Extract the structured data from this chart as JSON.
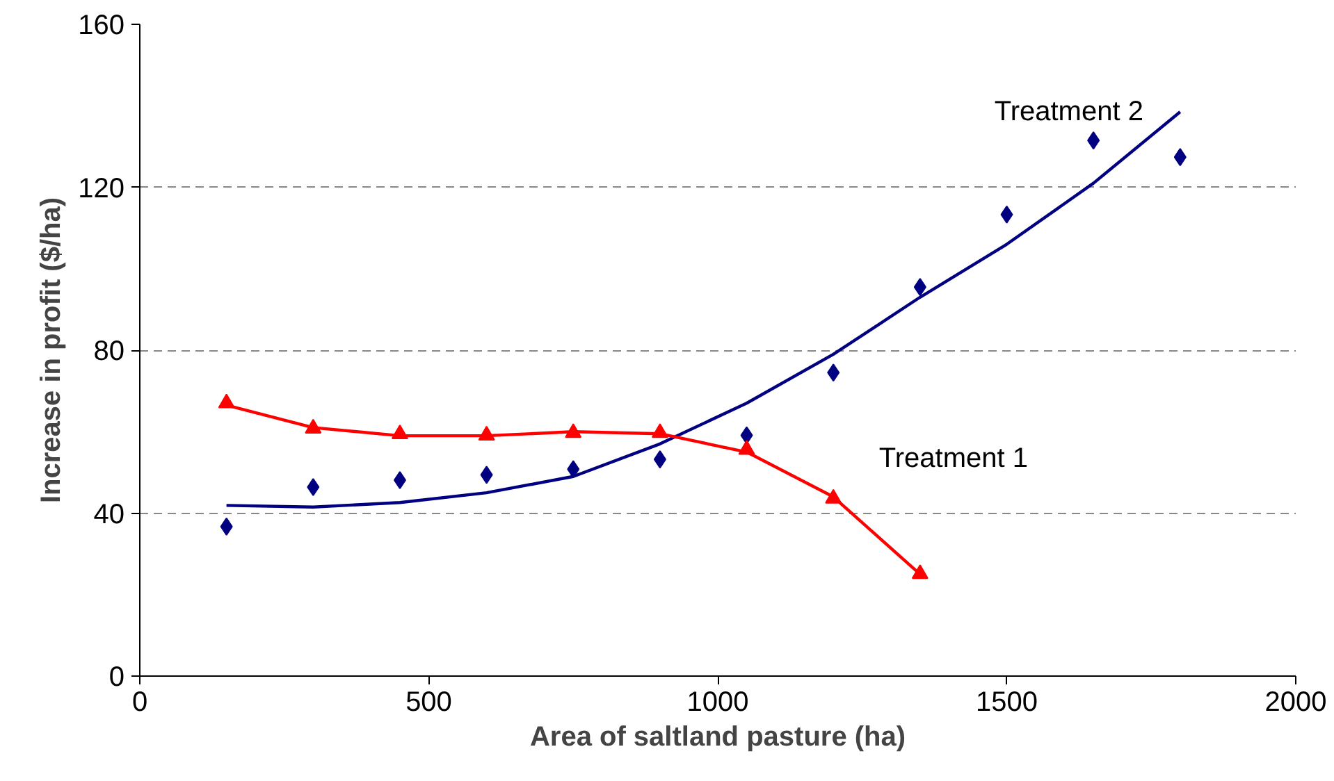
{
  "chart_data": {
    "type": "scatter",
    "xlabel": "Area of saltland pasture (ha)",
    "ylabel": "Increase in profit ($/ha)",
    "xlim": [
      0,
      2000
    ],
    "xticks": [
      0,
      500,
      1000,
      1500,
      2000
    ],
    "ylim": [
      0,
      160
    ],
    "yticks": [
      0,
      40,
      80,
      120,
      160
    ],
    "grid": "y",
    "legend": false,
    "series": [
      {
        "marker": "diamond",
        "color": "#000080",
        "x": [
          150,
          300,
          450,
          600,
          750,
          900,
          1050,
          1200,
          1350,
          1500,
          1650,
          1800
        ],
        "values": [
          36.7,
          46.4,
          48.1,
          49.4,
          50.8,
          53.2,
          59.1,
          74.5,
          95.5,
          113.3,
          131.5,
          127.4
        ]
      },
      {
        "type": "line",
        "name": "Treatment 2",
        "marker": "none",
        "color": "#000080",
        "x": [
          150,
          300,
          450,
          600,
          750,
          900,
          1050,
          1200,
          1350,
          1500,
          1650,
          1800
        ],
        "values": [
          41.9,
          41.5,
          42.6,
          45,
          49,
          57,
          67,
          79,
          93,
          106,
          121,
          138.5
        ]
      },
      {
        "marker": "triangle",
        "color": "#ff0000",
        "x": [
          150,
          300,
          450,
          600,
          750,
          900,
          1050,
          1200,
          1350
        ],
        "values": [
          67,
          60.8,
          59.4,
          59.1,
          59.7,
          59.7,
          55.6,
          43.6,
          25.1
        ]
      },
      {
        "type": "line",
        "name": "Treatment 1",
        "marker": "none",
        "color": "#ff0000",
        "x": [
          150,
          300,
          450,
          600,
          750,
          900,
          1050,
          1200,
          1350
        ],
        "values": [
          66.5,
          61,
          59,
          59,
          60,
          59.5,
          55,
          44,
          25
        ]
      }
    ]
  }
}
